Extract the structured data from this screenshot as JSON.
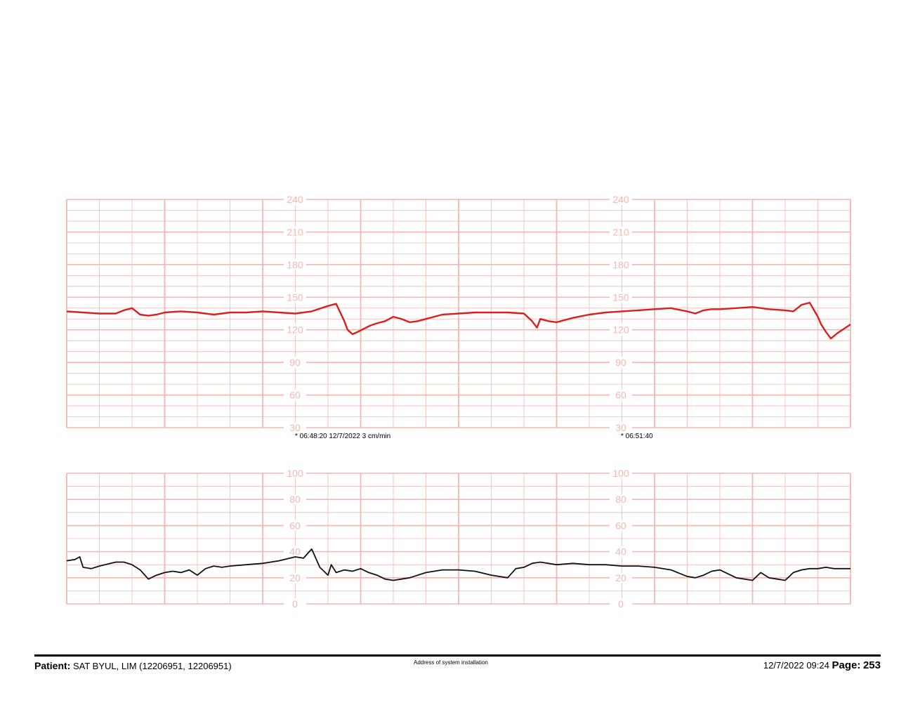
{
  "chart_data": [
    {
      "type": "line",
      "name": "fetal-heart-rate",
      "ylim": [
        30,
        240
      ],
      "yticks": [
        30,
        60,
        90,
        120,
        150,
        180,
        210,
        240
      ],
      "xlim": [
        0,
        480
      ],
      "xunit": "s",
      "line_color": "#d91f1f",
      "grid_color": "#f4b8b0",
      "x": [
        0,
        10,
        20,
        30,
        35,
        40,
        45,
        50,
        55,
        60,
        70,
        80,
        90,
        100,
        110,
        120,
        130,
        140,
        150,
        160,
        165,
        170,
        172,
        175,
        178,
        182,
        186,
        190,
        195,
        200,
        205,
        210,
        215,
        220,
        225,
        230,
        240,
        250,
        260,
        270,
        280,
        285,
        288,
        290,
        295,
        300,
        310,
        320,
        330,
        340,
        350,
        360,
        370,
        380,
        385,
        390,
        395,
        400,
        410,
        420,
        430,
        440,
        445,
        450,
        455,
        460,
        462,
        465,
        468,
        472,
        476,
        480
      ],
      "y": [
        137,
        136,
        135,
        135,
        138,
        140,
        134,
        133,
        134,
        136,
        137,
        136,
        134,
        136,
        136,
        137,
        136,
        135,
        137,
        142,
        144,
        128,
        120,
        116,
        118,
        121,
        124,
        126,
        128,
        132,
        130,
        127,
        128,
        130,
        132,
        134,
        135,
        136,
        136,
        136,
        135,
        128,
        122,
        130,
        128,
        127,
        131,
        134,
        136,
        137,
        138,
        139,
        140,
        137,
        135,
        138,
        139,
        139,
        140,
        141,
        139,
        138,
        137,
        143,
        145,
        132,
        125,
        118,
        112,
        117,
        121,
        125
      ]
    },
    {
      "type": "line",
      "name": "uterine-activity",
      "ylim": [
        0,
        100
      ],
      "yticks": [
        0,
        20,
        40,
        60,
        80,
        100
      ],
      "xlim": [
        0,
        480
      ],
      "xunit": "s",
      "line_color": "#111111",
      "x": [
        0,
        5,
        8,
        10,
        15,
        20,
        30,
        35,
        40,
        45,
        50,
        55,
        60,
        65,
        70,
        75,
        80,
        85,
        90,
        95,
        100,
        110,
        120,
        130,
        140,
        145,
        150,
        155,
        160,
        162,
        165,
        170,
        175,
        180,
        185,
        190,
        195,
        200,
        205,
        210,
        220,
        230,
        240,
        250,
        260,
        270,
        275,
        280,
        285,
        290,
        300,
        310,
        320,
        330,
        340,
        350,
        360,
        370,
        380,
        385,
        390,
        395,
        400,
        410,
        420,
        425,
        430,
        440,
        445,
        450,
        455,
        460,
        465,
        470,
        480
      ],
      "y": [
        33,
        34,
        36,
        28,
        27,
        29,
        32,
        32,
        30,
        26,
        19,
        22,
        24,
        25,
        24,
        26,
        22,
        27,
        29,
        28,
        29,
        30,
        31,
        33,
        36,
        35,
        42,
        28,
        22,
        30,
        24,
        26,
        25,
        27,
        24,
        22,
        19,
        18,
        19,
        20,
        24,
        26,
        26,
        25,
        22,
        20,
        27,
        28,
        31,
        32,
        30,
        31,
        30,
        30,
        29,
        29,
        28,
        26,
        21,
        20,
        22,
        25,
        26,
        20,
        18,
        24,
        20,
        18,
        24,
        26,
        27,
        27,
        28,
        27,
        27
      ]
    }
  ],
  "annotations": {
    "marker1": "* 06:48:20  12/7/2022  3 cm/min",
    "marker2": "* 06:51:40"
  },
  "footer": {
    "patient_label": "Patient:",
    "patient_value": "SAT BYUL, LIM (12206951, 12206951)",
    "address": "Address of system installation",
    "datetime": "12/7/2022 09:24",
    "page_label": "Page:",
    "page_value": "253"
  }
}
